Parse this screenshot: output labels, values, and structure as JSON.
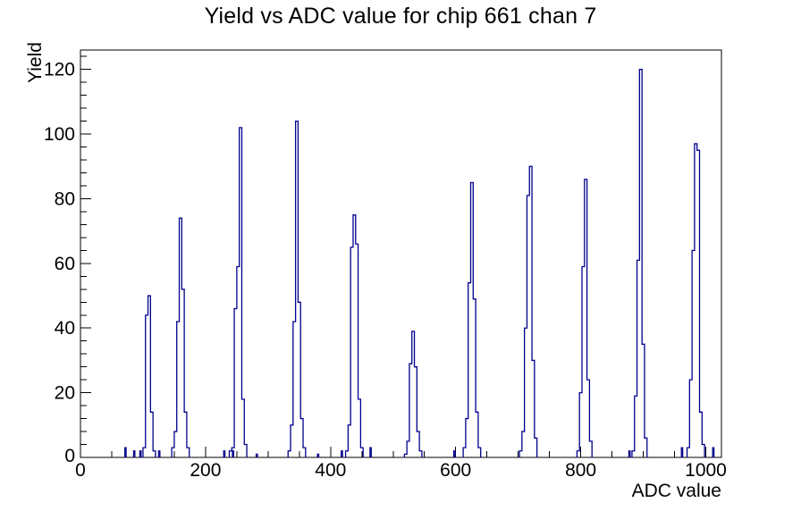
{
  "title": "Yield vs ADC value for chip 661 chan 7",
  "chart_data": {
    "type": "bar",
    "subtype": "histogram-outline",
    "title": "Yield vs ADC value for chip 661 chan 7",
    "xlabel": "ADC value",
    "ylabel": "Yield",
    "xlim": [
      0,
      1025
    ],
    "ylim": [
      0,
      126
    ],
    "x_major_ticks": [
      0,
      200,
      400,
      600,
      800,
      1000
    ],
    "x_minor_step": 50,
    "y_major_ticks": [
      0,
      20,
      40,
      60,
      80,
      100,
      120
    ],
    "y_minor_step": 4,
    "grid": "off",
    "legend": "none",
    "bar_color": "#00008c",
    "axis_color": "#000000",
    "bin_width": 4,
    "peaks_summary": [
      {
        "x": 112,
        "height": 50
      },
      {
        "x": 160,
        "height": 74
      },
      {
        "x": 252,
        "height": 102
      },
      {
        "x": 346,
        "height": 104
      },
      {
        "x": 438,
        "height": 75
      },
      {
        "x": 532,
        "height": 39
      },
      {
        "x": 626,
        "height": 85
      },
      {
        "x": 718,
        "height": 90
      },
      {
        "x": 806,
        "height": 86
      },
      {
        "x": 896,
        "height": 120
      },
      {
        "x": 984,
        "height": 97
      }
    ],
    "clusters": [
      {
        "x_start": 100,
        "heights": [
          3,
          44,
          50,
          14,
          2
        ]
      },
      {
        "x_start": 146,
        "heights": [
          3,
          8,
          42,
          74,
          52,
          14,
          3
        ]
      },
      {
        "x_start": 238,
        "heights": [
          2,
          3,
          46,
          59,
          102,
          18,
          4
        ]
      },
      {
        "x_start": 332,
        "heights": [
          2,
          10,
          42,
          104,
          48,
          12,
          3
        ]
      },
      {
        "x_start": 424,
        "heights": [
          2,
          10,
          65,
          75,
          66,
          18,
          3
        ]
      },
      {
        "x_start": 518,
        "heights": [
          1,
          5,
          29,
          39,
          28,
          8,
          2
        ]
      },
      {
        "x_start": 612,
        "heights": [
          3,
          12,
          54,
          85,
          49,
          14,
          3
        ]
      },
      {
        "x_start": 702,
        "heights": [
          2,
          8,
          40,
          81,
          90,
          30,
          6
        ]
      },
      {
        "x_start": 794,
        "heights": [
          2,
          20,
          59,
          86,
          24,
          5
        ]
      },
      {
        "x_start": 882,
        "heights": [
          2,
          19,
          61,
          120,
          35,
          6
        ]
      },
      {
        "x_start": 970,
        "heights": [
          3,
          24,
          64,
          97,
          95,
          14,
          4
        ]
      }
    ],
    "stray_bars": [
      {
        "x": 72,
        "h": 3
      },
      {
        "x": 86,
        "h": 2
      },
      {
        "x": 96,
        "h": 2
      },
      {
        "x": 126,
        "h": 2
      },
      {
        "x": 230,
        "h": 2
      },
      {
        "x": 244,
        "h": 2
      },
      {
        "x": 282,
        "h": 1
      },
      {
        "x": 380,
        "h": 1
      },
      {
        "x": 418,
        "h": 2
      },
      {
        "x": 464,
        "h": 3
      },
      {
        "x": 598,
        "h": 2
      },
      {
        "x": 878,
        "h": 2
      },
      {
        "x": 962,
        "h": 3
      },
      {
        "x": 1012,
        "h": 3
      }
    ]
  }
}
